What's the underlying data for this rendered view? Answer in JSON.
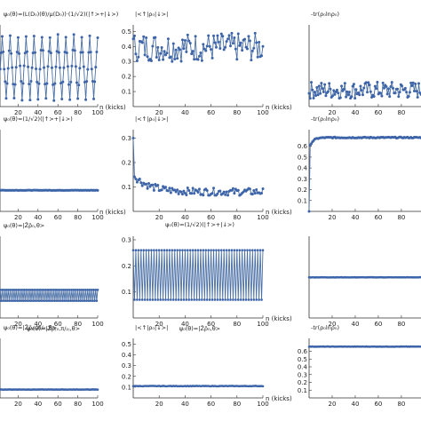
{
  "chart_data": [
    {
      "id": "r0c0",
      "type": "line",
      "title": "ψ₀(θ)=(L(D₀)(θ)/μ(D₀))·(1/√2)(|↑>+|↓>)",
      "xlabel": "",
      "ylabel": "",
      "xticks": [
        "20",
        "40",
        "60",
        "80",
        "100"
      ],
      "yticks": [],
      "xlim": [
        0,
        100
      ],
      "ylim": [
        0,
        1
      ],
      "pattern": "zigzag",
      "period": 8,
      "min": 0.1,
      "max": 0.9,
      "dense": false
    },
    {
      "id": "r0c1",
      "type": "line",
      "title": "|<↑|ρ₀|↓>|",
      "xlabel": "n (kicks)",
      "ylabel": "",
      "xticks": [
        "20",
        "40",
        "60",
        "80",
        "100"
      ],
      "yticks": [
        "0.1",
        "0.2",
        "0.3",
        "0.4",
        "0.5"
      ],
      "xlim": [
        0,
        100
      ],
      "ylim": [
        0,
        0.52
      ],
      "pattern": "oscillating",
      "min": 0.3,
      "max": 0.49,
      "dense": false
    },
    {
      "id": "r0c2",
      "type": "line",
      "title": "-tr(ρ₀lnρ₀)",
      "xlabel": "",
      "ylabel": "",
      "xticks": [
        "20",
        "40",
        "60",
        "80"
      ],
      "yticks": [],
      "xlim": [
        0,
        97
      ],
      "ylim": [
        0,
        1
      ],
      "pattern": "oscillating",
      "min": 0.1,
      "max": 0.32,
      "dense": false
    },
    {
      "id": "r1c0",
      "type": "line",
      "title": "ψ₀(θ)=(1/√2)(|↑>+|↓>)",
      "xlabel": "",
      "ylabel": "",
      "xticks": [
        "20",
        "40",
        "60",
        "80",
        "100"
      ],
      "yticks": [],
      "xlim": [
        0,
        100
      ],
      "ylim": [
        0,
        1
      ],
      "pattern": "flat",
      "level": 0.27,
      "dense": false
    },
    {
      "id": "r1c1",
      "type": "line",
      "title": "|<↑|ρ₀|↓>|",
      "xlabel": "n (kicks)",
      "ylabel": "",
      "xticks": [
        "20",
        "40",
        "60",
        "80",
        "100"
      ],
      "yticks": [
        "0.1",
        "0.2",
        "0.3"
      ],
      "xlim": [
        0,
        100
      ],
      "ylim": [
        0,
        0.32
      ],
      "pattern": "decay",
      "start": 0.3,
      "level": 0.08,
      "dense": false
    },
    {
      "id": "r1c2",
      "type": "line",
      "title": "-tr(ρ₀lnρ₀)",
      "xlabel": "",
      "ylabel": "",
      "xticks": [
        "20",
        "40",
        "60",
        "80"
      ],
      "yticks": [
        "0.1",
        "0.2",
        "0.3",
        "0.4",
        "0.5",
        "0.6"
      ],
      "xlim": [
        0,
        97
      ],
      "ylim": [
        0,
        0.72
      ],
      "pattern": "rise",
      "start": 0.0,
      "level": 0.68,
      "dense": false
    },
    {
      "id": "r2c0",
      "type": "line",
      "title": "ψ₀(θ)=|Z̄ρ̄₀,θ>",
      "xlabel": "",
      "ylabel": "",
      "xticks": [
        "20",
        "40",
        "60",
        "80",
        "100"
      ],
      "yticks": [],
      "xlim": [
        0,
        100
      ],
      "ylim": [
        0,
        1
      ],
      "pattern": "alternating",
      "low": 0.22,
      "high": 0.36,
      "dense": true
    },
    {
      "id": "r2c1",
      "type": "line",
      "title": "",
      "xlabel": "n (kicks)",
      "ylabel": "",
      "xticks": [
        "20",
        "40",
        "60",
        "80",
        "100"
      ],
      "yticks": [
        "0.1",
        "0.2",
        "0.3"
      ],
      "xlim": [
        0,
        100
      ],
      "ylim": [
        0,
        0.3
      ],
      "pattern": "alternating",
      "low": 0.07,
      "high": 0.26,
      "mid": 0.17,
      "dense": true
    },
    {
      "id": "r2c2",
      "type": "line",
      "title": "",
      "xlabel": "",
      "ylabel": "",
      "xticks": [
        "20",
        "40",
        "60",
        "80"
      ],
      "yticks": [],
      "xlim": [
        0,
        97
      ],
      "ylim": [
        0,
        1
      ],
      "pattern": "flat",
      "level": 0.52,
      "dense": true
    },
    {
      "id": "r3c0",
      "type": "line",
      "title": "ψ₀(θ)=|Z̄ρ̄₍₀,π/₂₎,θ>",
      "xlabel": "",
      "ylabel": "",
      "xticks": [
        "20",
        "40",
        "60",
        "80",
        "100"
      ],
      "yticks": [],
      "xlim": [
        0,
        100
      ],
      "ylim": [
        0,
        1
      ],
      "pattern": "flat",
      "level": 0.15,
      "dense": true
    },
    {
      "id": "r3c1",
      "type": "line",
      "title": "|<↑|ρ₀|↓>|",
      "xlabel": "n (kicks)",
      "ylabel": "",
      "xticks": [
        "20",
        "40",
        "60",
        "80",
        "100"
      ],
      "yticks": [
        "0.1",
        "0.2",
        "0.3",
        "0.4",
        "0.5"
      ],
      "xlim": [
        0,
        100
      ],
      "ylim": [
        0,
        0.52
      ],
      "pattern": "flat",
      "level": 0.11,
      "dense": true
    },
    {
      "id": "r3c2",
      "type": "line",
      "title": "-tr(ρ₀lnρ₀)",
      "xlabel": "",
      "ylabel": "",
      "xticks": [
        "20",
        "40",
        "60",
        "80"
      ],
      "yticks": [
        "0.1",
        "0.2",
        "0.3",
        "0.4",
        "0.5",
        "0.6"
      ],
      "xlim": [
        0,
        97
      ],
      "ylim": [
        0,
        0.72
      ],
      "pattern": "flat",
      "level": 0.66,
      "dense": true
    }
  ],
  "row_captions": [
    "ψ₀(θ)=(1/√2)(|↑>+|↓>)",
    "ψ₀(θ)=|Z̄ρ̄₀,θ>",
    "ψ₀(θ)=|Z̄ρ̄₍₀,π/₂₎,θ>"
  ],
  "x_label_left": "n (kicks)"
}
